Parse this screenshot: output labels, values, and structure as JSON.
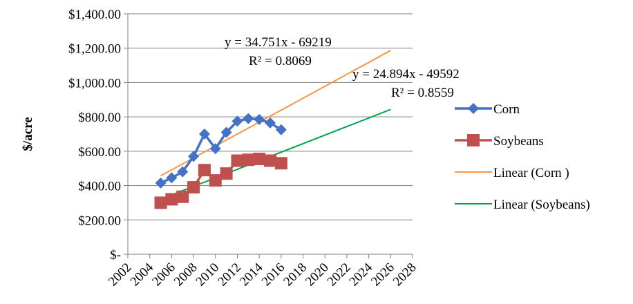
{
  "chart_data": {
    "type": "line",
    "title": "",
    "xlabel": "",
    "ylabel": "$/acre",
    "xlim": [
      2002,
      2028
    ],
    "ylim": [
      0,
      1400
    ],
    "x_ticks": [
      "2002",
      "2004",
      "2006",
      "2008",
      "2010",
      "2012",
      "2014",
      "2016",
      "2018",
      "2020",
      "2022",
      "2024",
      "2026",
      "2028"
    ],
    "y_ticks": [
      "$-",
      "$200.00",
      "$400.00",
      "$600.00",
      "$800.00",
      "$1,000.00",
      "$1,200.00",
      "$1,400.00"
    ],
    "grid": "horizontal",
    "legend_position": "right",
    "series": [
      {
        "name": "Corn",
        "color": "#4472C4",
        "marker": "diamond",
        "x": [
          2005,
          2006,
          2007,
          2008,
          2009,
          2010,
          2011,
          2012,
          2013,
          2014,
          2015,
          2016
        ],
        "values": [
          415,
          445,
          480,
          570,
          700,
          615,
          710,
          775,
          790,
          785,
          765,
          725
        ]
      },
      {
        "name": "Soybeans",
        "color": "#C0504D",
        "marker": "square",
        "x": [
          2005,
          2006,
          2007,
          2008,
          2009,
          2010,
          2011,
          2012,
          2013,
          2014,
          2015,
          2016
        ],
        "values": [
          300,
          320,
          335,
          390,
          490,
          430,
          470,
          545,
          550,
          555,
          545,
          530
        ]
      }
    ],
    "trendlines": [
      {
        "name": "Linear (Corn )",
        "color": "#F79646",
        "slope": 34.751,
        "intercept": -69219,
        "x_range": [
          2005,
          2026
        ],
        "equation": "y = 34.751x - 69219",
        "r2": "R² = 0.8069"
      },
      {
        "name": "Linear (Soybeans)",
        "color": "#00A651",
        "slope": 24.894,
        "intercept": -49592,
        "x_range": [
          2005,
          2026
        ],
        "equation": "y = 24.894x - 49592",
        "r2": "R² = 0.8559"
      }
    ]
  }
}
